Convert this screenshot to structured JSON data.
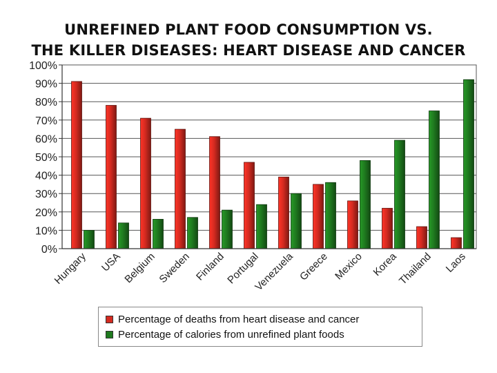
{
  "chart_data": {
    "type": "bar",
    "title_lines": [
      "UNREFINED PLANT FOOD CONSUMPTION VS.",
      "THE KILLER DISEASES: HEART DISEASE AND CANCER"
    ],
    "categories": [
      "Hungary",
      "USA",
      "Belgium",
      "Sweden",
      "Finland",
      "Portugal",
      "Venezuela",
      "Greece",
      "Mexico",
      "Korea",
      "Thailand",
      "Laos"
    ],
    "series": [
      {
        "name": "Percentage of deaths from heart disease and cancer",
        "color": "#d42a20",
        "values": [
          91,
          78,
          71,
          65,
          61,
          47,
          39,
          35,
          26,
          22,
          12,
          6
        ]
      },
      {
        "name": "Percentage of calories from unrefined plant foods",
        "color": "#1f7a1f",
        "values": [
          10,
          14,
          16,
          17,
          21,
          24,
          30,
          36,
          48,
          59,
          75,
          92
        ]
      }
    ],
    "y_ticks": [
      "0%",
      "10%",
      "20%",
      "30%",
      "40%",
      "50%",
      "60%",
      "70%",
      "80%",
      "90%",
      "100%"
    ],
    "ylim": [
      0,
      100
    ],
    "grid": true,
    "legend_position": "bottom"
  }
}
